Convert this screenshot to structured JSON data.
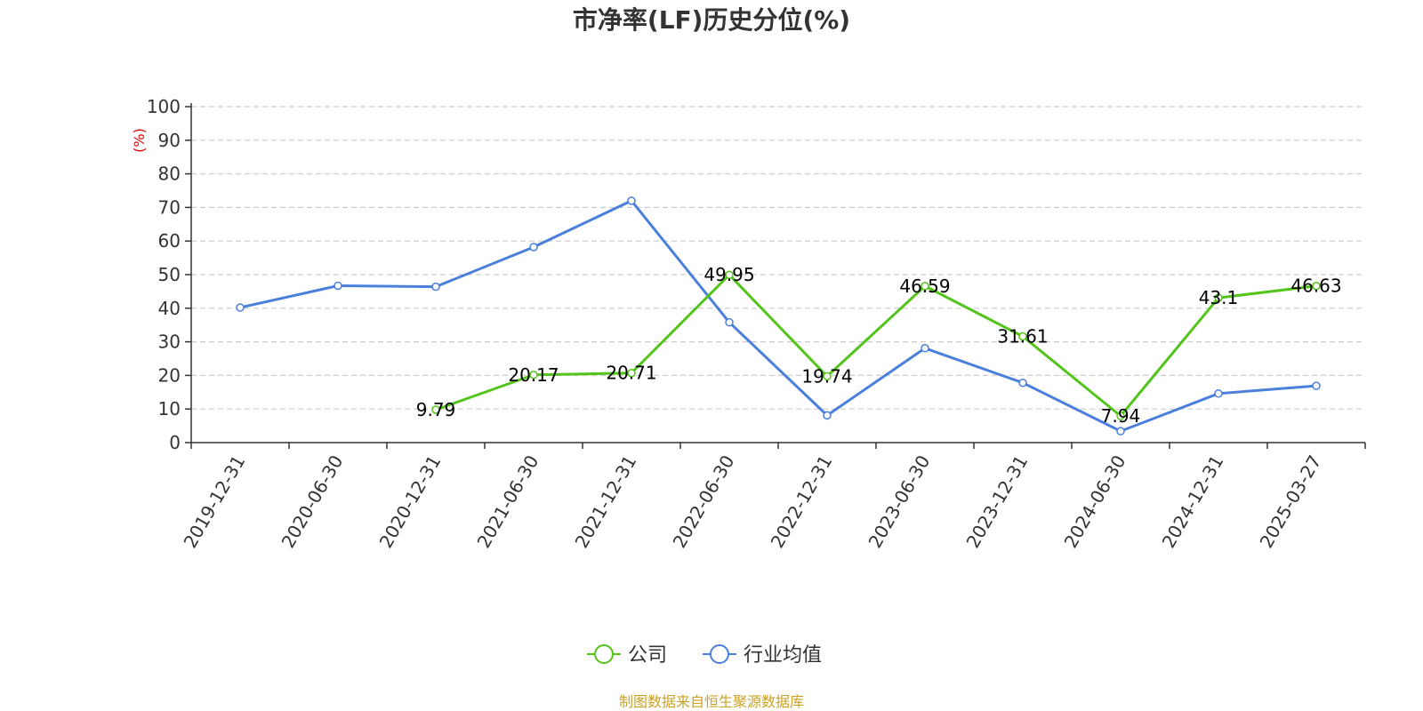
{
  "chart_data": {
    "type": "line",
    "title": "市净率(LF)历史分位(%)",
    "ylabel": "(%)",
    "xlabel": "",
    "ylim": [
      0,
      100
    ],
    "yticks": [
      0,
      10,
      20,
      30,
      40,
      50,
      60,
      70,
      80,
      90,
      100
    ],
    "grid": true,
    "legend_position": "bottom-center",
    "categories": [
      "2019-12-31",
      "2020-06-30",
      "2020-12-31",
      "2021-06-30",
      "2021-12-31",
      "2022-06-30",
      "2022-12-31",
      "2023-06-30",
      "2023-12-31",
      "2024-06-30",
      "2024-12-31",
      "2025-03-27"
    ],
    "series": [
      {
        "name": "公司",
        "color": "#52c41a",
        "values": [
          null,
          null,
          9.79,
          20.17,
          20.71,
          49.95,
          19.74,
          46.59,
          31.61,
          7.94,
          43.1,
          46.63
        ],
        "labels": [
          null,
          null,
          "9.79",
          "20.17",
          "20.71",
          "49.95",
          "19.74",
          "46.59",
          "31.61",
          "7.94",
          "43.1",
          "46.63"
        ]
      },
      {
        "name": "行业均值",
        "color": "#4a7fdc",
        "values": [
          40.2,
          46.7,
          46.4,
          58.2,
          72.0,
          35.8,
          8.1,
          28.1,
          17.8,
          3.4,
          14.6,
          16.9
        ]
      }
    ],
    "source": "制图数据来自恒生聚源数据库"
  }
}
